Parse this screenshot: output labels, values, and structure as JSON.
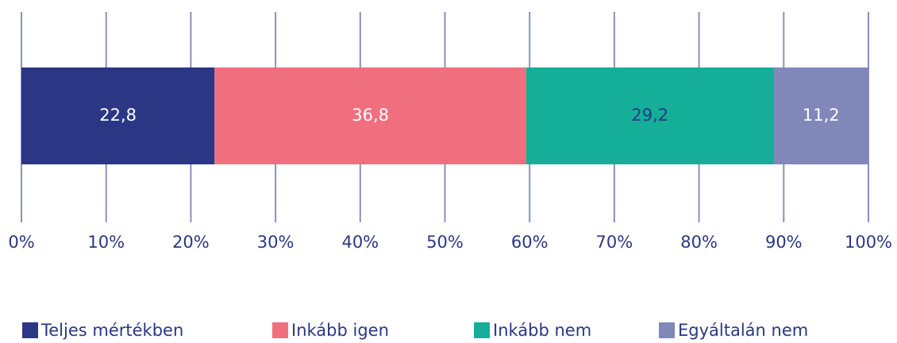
{
  "chart_data": {
    "type": "stacked_bar_horizontal",
    "categories": [
      null
    ],
    "series": [
      {
        "name": "Teljes mértékben",
        "color": "#2b3784",
        "label_color": "#ffffff",
        "values": [
          22.8
        ],
        "value_labels": [
          "22,8"
        ]
      },
      {
        "name": "Inkább igen",
        "color": "#ef6f7e",
        "label_color": "#ffffff",
        "values": [
          36.8
        ],
        "value_labels": [
          "36,8"
        ]
      },
      {
        "name": "Inkább nem",
        "color": "#14ae99",
        "label_color": "#2b3784",
        "values": [
          29.2
        ],
        "value_labels": [
          "29,2"
        ]
      },
      {
        "name": "Egyáltalán nem",
        "color": "#8088b9",
        "label_color": "#ffffff",
        "values": [
          11.2
        ],
        "value_labels": [
          "11,2"
        ]
      }
    ],
    "xlim": [
      0,
      100
    ],
    "xticks": [
      {
        "value": 0,
        "label": "0%"
      },
      {
        "value": 10,
        "label": "10%"
      },
      {
        "value": 20,
        "label": "20%"
      },
      {
        "value": 30,
        "label": "30%"
      },
      {
        "value": 40,
        "label": "40%"
      },
      {
        "value": 50,
        "label": "50%"
      },
      {
        "value": 60,
        "label": "60%"
      },
      {
        "value": 70,
        "label": "70%"
      },
      {
        "value": 80,
        "label": "80%"
      },
      {
        "value": 90,
        "label": "90%"
      },
      {
        "value": 100,
        "label": "100%"
      }
    ],
    "grid": true,
    "grid_color": "#8a8fc2",
    "tick_label_color": "#2b3784",
    "legend": "bottom"
  }
}
